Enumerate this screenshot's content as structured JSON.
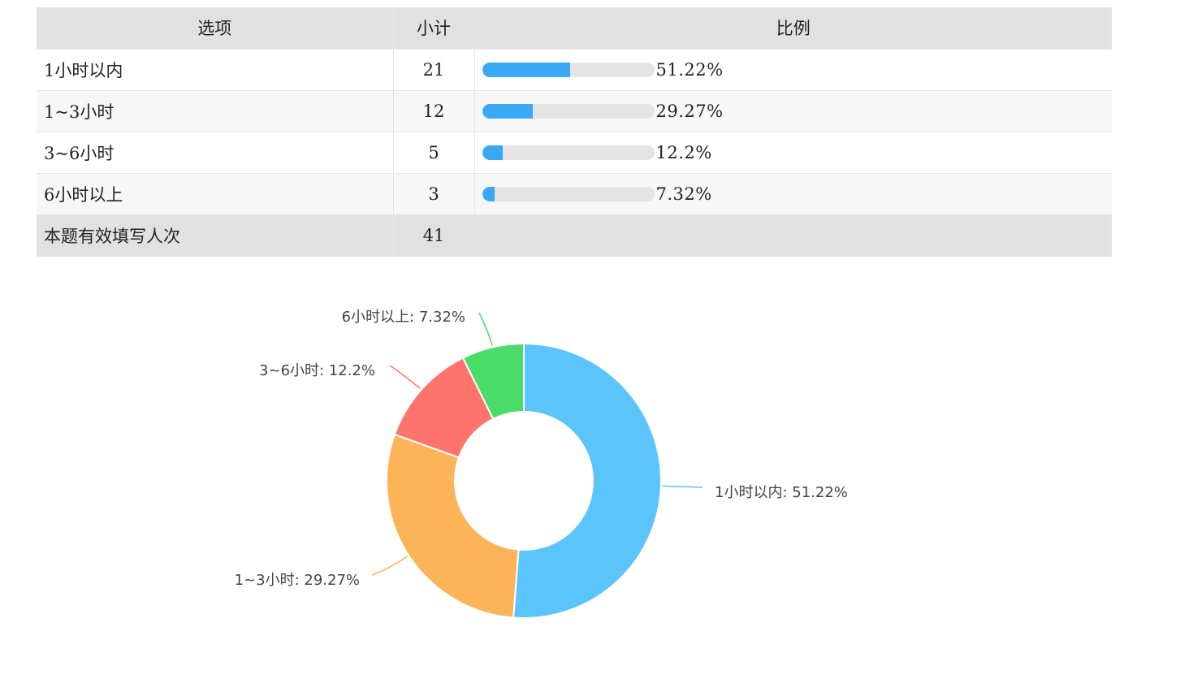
{
  "table": {
    "headers": {
      "option": "选项",
      "count": "小计",
      "ratio": "比例"
    },
    "rows": [
      {
        "option": "1小时以内",
        "count": "21",
        "pct_text": "51.22%",
        "pct": 51.22
      },
      {
        "option": "1~3小时",
        "count": "12",
        "pct_text": "29.27%",
        "pct": 29.27
      },
      {
        "option": "3~6小时",
        "count": "5",
        "pct_text": "12.2%",
        "pct": 12.2
      },
      {
        "option": "6小时以上",
        "count": "3",
        "pct_text": "7.32%",
        "pct": 7.32
      }
    ],
    "total": {
      "label": "本题有效填写人次",
      "count": "41"
    }
  },
  "colors": {
    "bar_fill": "#3aa9f5",
    "bar_track": "#e4e4e4"
  },
  "chart_data": {
    "type": "pie",
    "donut": true,
    "title": "",
    "labels": [
      "1小时以内",
      "1~3小时",
      "3~6小时",
      "6小时以上"
    ],
    "values": [
      51.22,
      29.27,
      12.2,
      7.32
    ],
    "slice_labels": [
      "1小时以内: 51.22%",
      "1~3小时: 29.27%",
      "3~6小时: 12.2%",
      "6小时以上: 7.32%"
    ],
    "colors": [
      "#5bc5fb",
      "#fdb358",
      "#fe746c",
      "#4bdb68"
    ],
    "legend": "none"
  }
}
